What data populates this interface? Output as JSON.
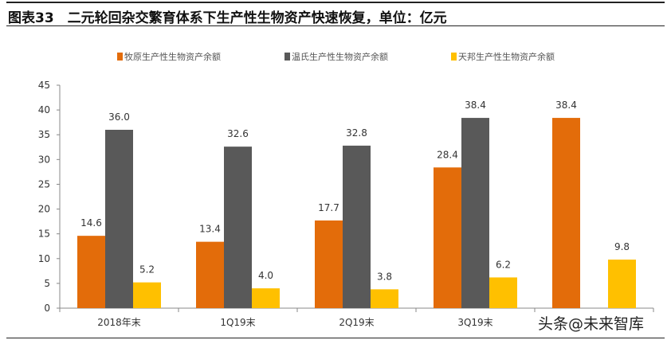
{
  "title": "图表33　二元轮回杂交繁育体系下生产性生物资产快速恢复，单位：亿元",
  "watermark": "头条@未来智库",
  "chart_data": {
    "type": "bar",
    "title": "图表33　二元轮回杂交繁育体系下生产性生物资产快速恢复，单位：亿元",
    "categories": [
      "2018年末",
      "1Q19末",
      "2Q19末",
      "3Q19末",
      ""
    ],
    "series": [
      {
        "name": "牧原生产性生物资产余额",
        "color": "#E36C0A",
        "values": [
          14.6,
          13.4,
          17.7,
          28.4,
          38.4
        ]
      },
      {
        "name": "温氏生产性生物资产余额",
        "color": "#595959",
        "values": [
          36.0,
          32.6,
          32.8,
          38.4,
          null
        ]
      },
      {
        "name": "天邦生产性生物资产余额",
        "color": "#FFC000",
        "values": [
          5.2,
          4.0,
          3.8,
          6.2,
          9.8
        ]
      }
    ],
    "ylim": [
      0,
      45
    ],
    "yticks": [
      0,
      5,
      10,
      15,
      20,
      25,
      30,
      35,
      40,
      45
    ],
    "grid": false,
    "legend": "top",
    "xlabel": "",
    "ylabel": ""
  }
}
